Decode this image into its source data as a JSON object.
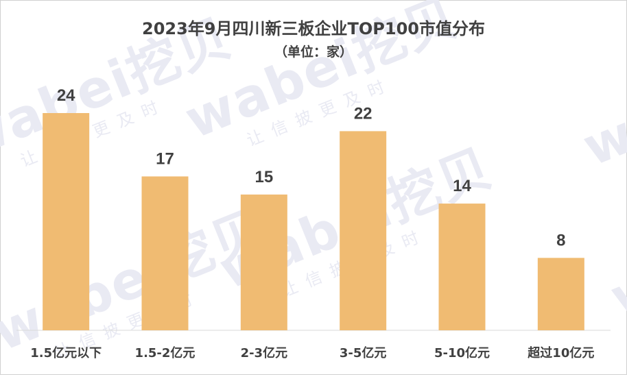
{
  "watermark": {
    "brand": "wabei挖贝",
    "slogan": "让信披更及时"
  },
  "chart_data": {
    "type": "bar",
    "title": "2023年9月四川新三板企业TOP100市值分布",
    "subtitle": "（单位：家）",
    "categories": [
      "1.5亿元以下",
      "1.5-2亿元",
      "2-3亿元",
      "3-5亿元",
      "5-10亿元",
      "超过10亿元"
    ],
    "values": [
      24,
      17,
      15,
      22,
      14,
      8
    ],
    "ylim": [
      0,
      24
    ],
    "bar_color": "#f0bb72",
    "grid": false,
    "legend": "none"
  }
}
